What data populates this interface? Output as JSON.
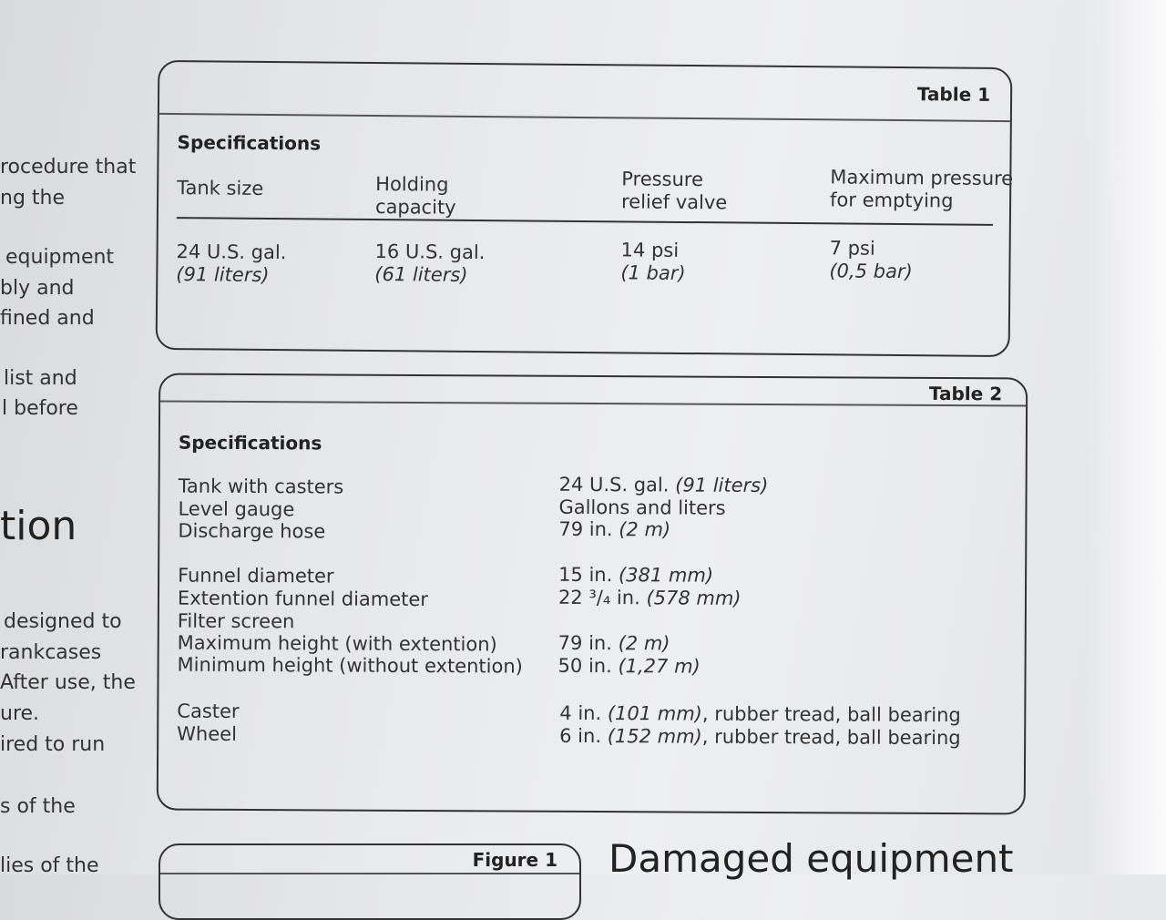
{
  "left_column": {
    "lines": [
      "rocedure that",
      "ng the",
      "equipment",
      "bly and",
      "fined and",
      "list and",
      "l before",
      "designed to",
      "rankcases",
      "After use, the",
      "ure.",
      "ired to run",
      "s of the",
      "lies of the"
    ],
    "heading_fragment": "tion"
  },
  "table1": {
    "tag": "Table 1",
    "title": "Specifications",
    "headers": [
      [
        "Tank size",
        ""
      ],
      [
        "Holding",
        "capacity"
      ],
      [
        "Pressure",
        "relief valve"
      ],
      [
        "Maximum pressure",
        "for emptying"
      ]
    ],
    "values": [
      [
        "24 U.S. gal.",
        "(91 liters)"
      ],
      [
        "16 U.S. gal.",
        "(61 liters)"
      ],
      [
        "14 psi",
        "(1 bar)"
      ],
      [
        "7 psi",
        "(0,5 bar)"
      ]
    ]
  },
  "table2": {
    "tag": "Table 2",
    "title": "Specifications",
    "rows": [
      {
        "label": "Tank with casters",
        "value": "24 U.S. gal.",
        "note": "(91 liters)",
        "rest": ""
      },
      {
        "label": "Level gauge",
        "value": "Gallons and liters",
        "note": "",
        "rest": ""
      },
      {
        "label": "Discharge hose",
        "value": "79 in.",
        "note": "(2 m)",
        "rest": ""
      },
      {
        "label": "Funnel diameter",
        "value": "15 in.",
        "note": "(381 mm)",
        "rest": ""
      },
      {
        "label": "Extention funnel diameter",
        "value": "22 ³/₄ in.",
        "note": "(578 mm)",
        "rest": ""
      },
      {
        "label": "Filter screen",
        "value": "",
        "note": "",
        "rest": ""
      },
      {
        "label": "Maximum height (with extention)",
        "value": "79 in.",
        "note": "(2 m)",
        "rest": ""
      },
      {
        "label": "Minimum height (without extention)",
        "value": "50 in.",
        "note": "(1,27 m)",
        "rest": ""
      },
      {
        "label": "Caster",
        "value": "4 in.",
        "note": "(101 mm)",
        "rest": ", rubber tread, ball bearing"
      },
      {
        "label": "Wheel",
        "value": "6 in.",
        "note": "(152 mm)",
        "rest": ", rubber tread, ball bearing"
      }
    ]
  },
  "figure1": {
    "tag": "Figure 1"
  },
  "next_heading": "Damaged equipment"
}
